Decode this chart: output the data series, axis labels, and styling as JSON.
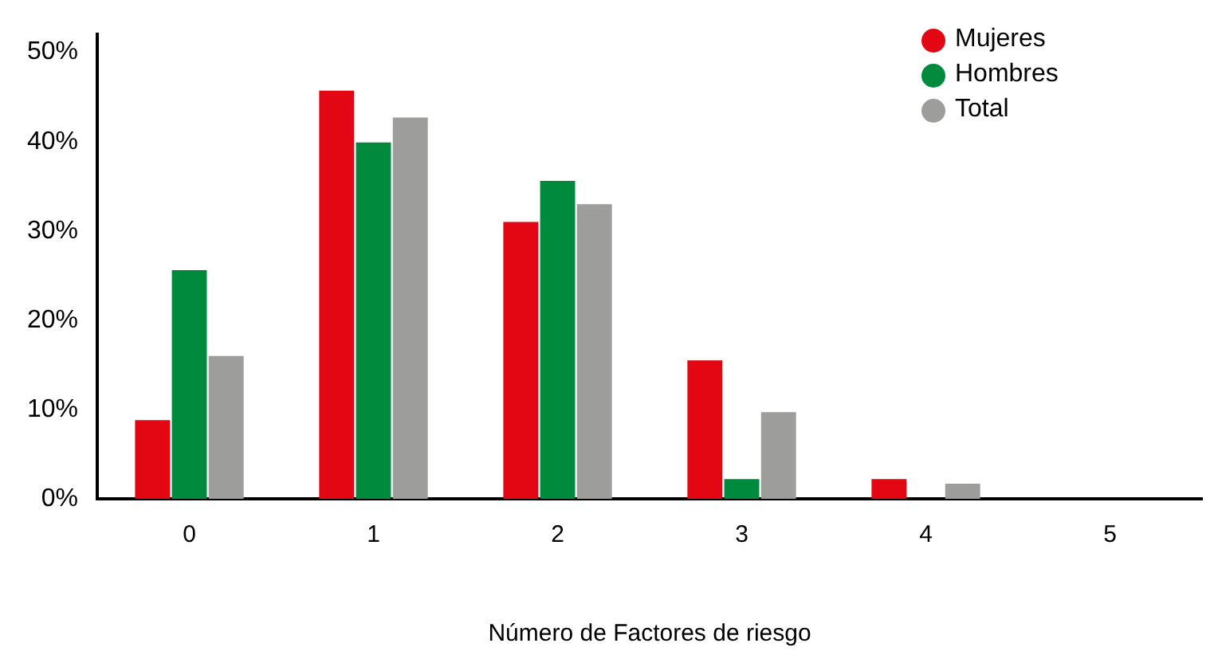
{
  "chart_data": {
    "type": "bar",
    "xlabel": "Número de Factores de riesgo",
    "categories": [
      "0",
      "1",
      "2",
      "3",
      "4",
      "5"
    ],
    "series": [
      {
        "name": "Mujeres",
        "color": "#e30613",
        "values": [
          8.8,
          45.7,
          31,
          15.5,
          2.2,
          0
        ]
      },
      {
        "name": "Hombres",
        "color": "#008a3e",
        "values": [
          25.6,
          39.9,
          35.6,
          2.2,
          0,
          0
        ]
      },
      {
        "name": "Total",
        "color": "#9d9d9c",
        "values": [
          16,
          42.7,
          33,
          9.7,
          1.7,
          0
        ]
      }
    ],
    "ylim": [
      0,
      52
    ],
    "yticks": [
      {
        "value": 0,
        "label": "0%"
      },
      {
        "value": 10,
        "label": "10%"
      },
      {
        "value": 20,
        "label": "20%"
      },
      {
        "value": 30,
        "label": "30%"
      },
      {
        "value": 40,
        "label": "40%"
      },
      {
        "value": 50,
        "label": "50%"
      }
    ],
    "grid": false,
    "legend": "top right"
  }
}
